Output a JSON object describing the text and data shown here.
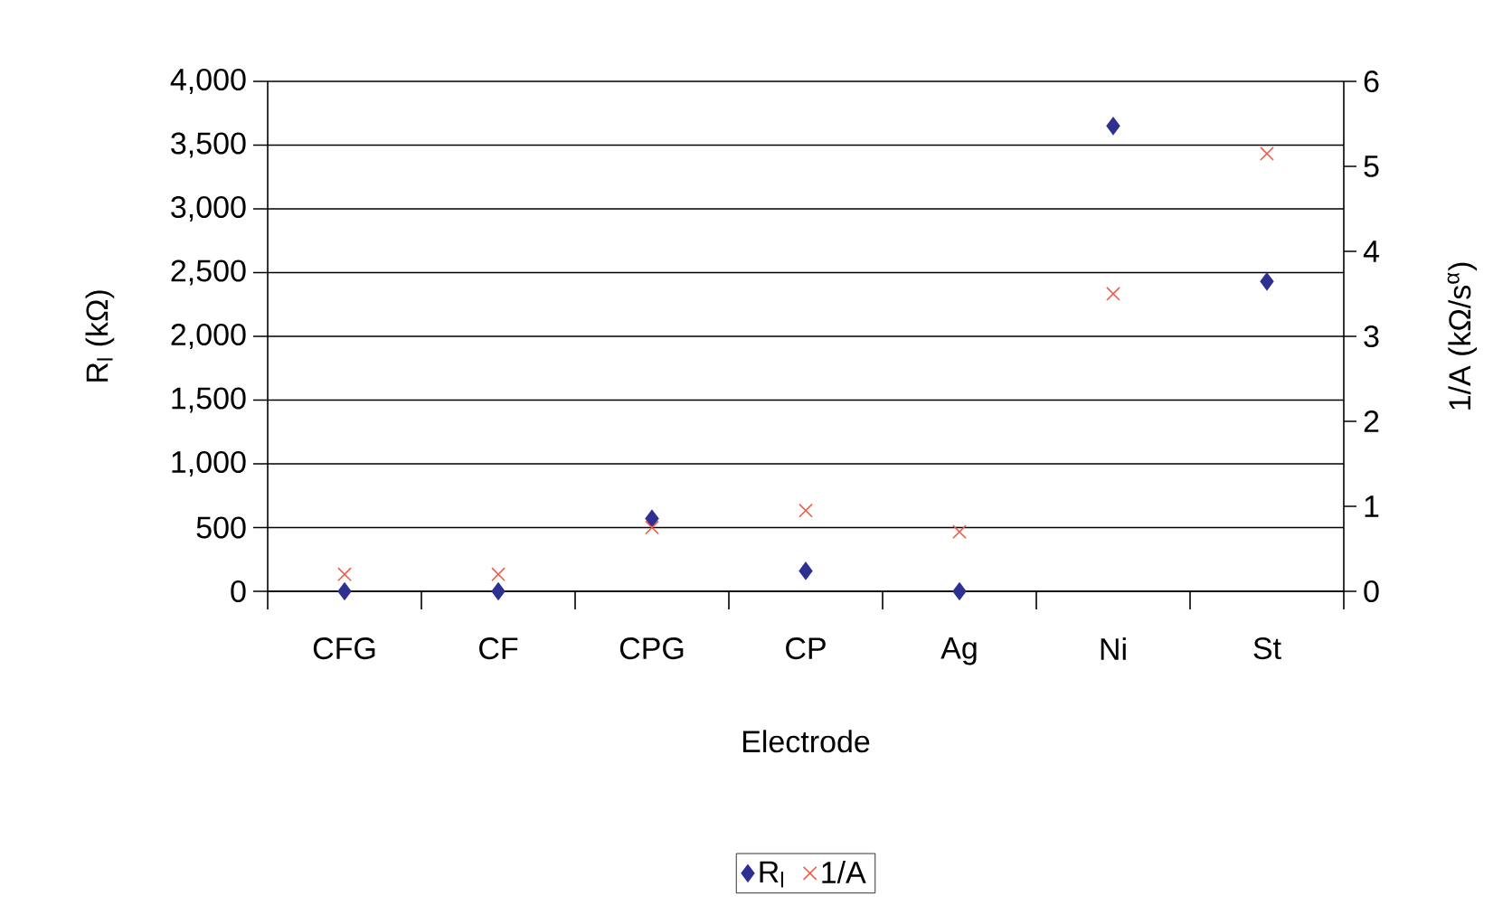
{
  "chart_data": {
    "type": "scatter",
    "xlabel": "Electrode",
    "ylabel": "R$_{l}$ (kΩ)",
    "y2label": "1/A (kΩ/s$^{α}$)",
    "categories": [
      "CFG",
      "CF",
      "CPG",
      "CP",
      "Ag",
      "Ni",
      "St"
    ],
    "series": [
      {
        "name": "R$_{l}$",
        "color": "#2e3192",
        "marker": "diamond",
        "values": [
          0,
          0,
          570,
          160,
          0,
          3650,
          2430
        ]
      },
      {
        "name": "1/A",
        "color": "#f05a4a",
        "marker": "cross",
        "axis": "y2",
        "values": [
          0.2,
          0.2,
          0.75,
          0.95,
          0.7,
          3.5,
          5.15
        ]
      }
    ],
    "ylim": [
      0,
      4000
    ],
    "yticks": [
      {
        "value": 0,
        "label": "0"
      },
      {
        "value": 500,
        "label": "500"
      },
      {
        "value": 1000,
        "label": "1,000"
      },
      {
        "value": 1500,
        "label": "1,500"
      },
      {
        "value": 2000,
        "label": "2,000"
      },
      {
        "value": 2500,
        "label": "2,500"
      },
      {
        "value": 3000,
        "label": "3,000"
      },
      {
        "value": 3500,
        "label": "3,500"
      },
      {
        "value": 4000,
        "label": "4,000"
      }
    ],
    "y2lim": [
      0,
      6
    ],
    "y2ticks": [
      0,
      1,
      2,
      3,
      4,
      5,
      6
    ],
    "grid": "y",
    "legend": "bottom"
  }
}
